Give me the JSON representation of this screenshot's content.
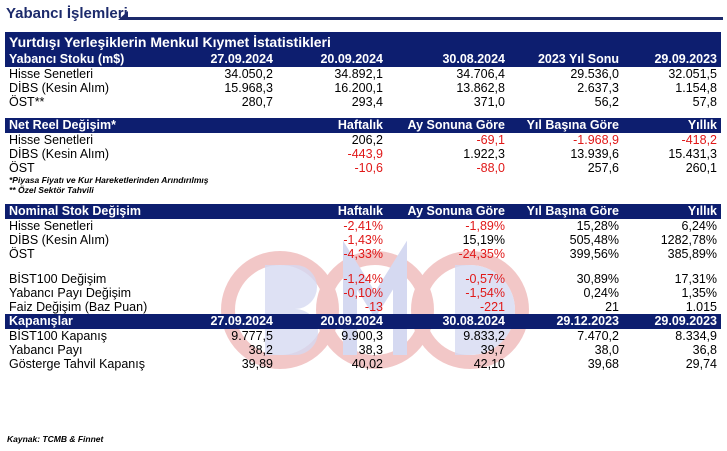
{
  "page_title": "Yabancı İşlemleri",
  "table_title": "Yurtdışı Yerleşiklerin Menkul Kıymet İstatistikleri",
  "stock": {
    "header": [
      "Yabancı Stoku (m$)",
      "27.09.2024",
      "20.09.2024",
      "30.08.2024",
      "2023 Yıl Sonu",
      "29.09.2023"
    ],
    "rows": [
      {
        "label": "Hisse Senetleri",
        "values": [
          "34.050,2",
          "34.892,1",
          "34.706,4",
          "29.536,0",
          "32.051,5"
        ]
      },
      {
        "label": "DİBS (Kesin Alım)",
        "values": [
          "15.968,3",
          "16.200,1",
          "13.862,8",
          "2.637,3",
          "1.154,8"
        ]
      },
      {
        "label": "ÖST**",
        "values": [
          "280,7",
          "293,4",
          "371,0",
          "56,2",
          "57,8"
        ]
      }
    ]
  },
  "real_change": {
    "header": [
      "Net Reel Değişim*",
      "Haftalık",
      "Ay Sonuna Göre",
      "Yıl Başına Göre",
      "Yıllık"
    ],
    "rows": [
      {
        "label": "Hisse Senetleri",
        "values": [
          "206,2",
          "-69,1",
          "-1.968,9",
          "-418,2"
        ]
      },
      {
        "label": "DİBS (Kesin Alım)",
        "values": [
          "-443,9",
          "1.922,3",
          "13.939,6",
          "15.431,3"
        ]
      },
      {
        "label": "ÖST",
        "values": [
          "-10,6",
          "-88,0",
          "257,6",
          "260,1"
        ]
      }
    ],
    "notes": [
      "*Piyasa Fiyatı ve Kur Hareketlerinden Arındırılmış",
      "** Özel Sektör Tahvili"
    ]
  },
  "nominal_change": {
    "header": [
      "Nominal Stok Değişim",
      "Haftalık",
      "Ay Sonuna Göre",
      "Yıl Başına Göre",
      "Yıllık"
    ],
    "rows": [
      {
        "label": "Hisse Senetleri",
        "values": [
          "-2,41%",
          "-1,89%",
          "15,28%",
          "6,24%"
        ]
      },
      {
        "label": "DİBS (Kesin Alım)",
        "values": [
          "-1,43%",
          "15,19%",
          "505,48%",
          "1282,78%"
        ]
      },
      {
        "label": "ÖST",
        "values": [
          "-4,33%",
          "-24,35%",
          "399,56%",
          "385,89%"
        ]
      }
    ]
  },
  "other_change": {
    "rows": [
      {
        "label": "BİST100 Değişim",
        "values": [
          "-1,24%",
          "-0,57%",
          "30,89%",
          "17,31%"
        ]
      },
      {
        "label": "Yabancı Payı Değişim",
        "values": [
          "-0,10%",
          "-1,54%",
          "0,24%",
          "1,35%"
        ]
      },
      {
        "label": "Faiz Değişim (Baz Puan)",
        "values": [
          "-13",
          "-221",
          "21",
          "1.015"
        ]
      }
    ]
  },
  "closing": {
    "header": [
      "Kapanışlar",
      "27.09.2024",
      "20.09.2024",
      "30.08.2024",
      "29.12.2023",
      "29.09.2023"
    ],
    "rows": [
      {
        "label": "BİST100 Kapanış",
        "values": [
          "9.777,5",
          "9.900,3",
          "9.833,2",
          "7.470,2",
          "8.334,9"
        ]
      },
      {
        "label": "Yabancı Payı",
        "values": [
          "38,2",
          "38,3",
          "39,7",
          "38,0",
          "36,8"
        ]
      },
      {
        "label": "Gösterge Tahvil Kapanış",
        "values": [
          "39,89",
          "40,02",
          "42,10",
          "39,68",
          "29,74"
        ]
      }
    ]
  },
  "source": "Kaynak: TCMB & Finnet",
  "colors": {
    "header_bg": "#0d1e6f",
    "negative": "#e01818",
    "watermark": "#d23a3a"
  }
}
